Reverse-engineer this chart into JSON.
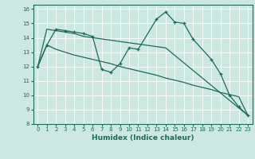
{
  "title": "",
  "xlabel": "Humidex (Indice chaleur)",
  "bg_color": "#cce8e0",
  "grid_color": "#ffffff",
  "line_color": "#1a6b5a",
  "xlim": [
    -0.5,
    23.5
  ],
  "ylim": [
    8,
    16.3
  ],
  "xticks": [
    0,
    1,
    2,
    3,
    4,
    5,
    6,
    7,
    8,
    9,
    10,
    11,
    12,
    13,
    14,
    15,
    16,
    17,
    18,
    19,
    20,
    21,
    22,
    23
  ],
  "yticks": [
    8,
    9,
    10,
    11,
    12,
    13,
    14,
    15,
    16
  ],
  "series1": {
    "x": [
      0,
      1,
      2,
      3,
      4,
      5,
      6,
      7,
      8,
      9,
      10,
      11,
      13,
      14,
      15,
      16,
      17,
      19,
      20,
      21,
      22,
      23
    ],
    "y": [
      12.0,
      13.5,
      14.6,
      14.5,
      14.4,
      14.3,
      14.1,
      11.8,
      11.6,
      12.2,
      13.3,
      13.2,
      15.3,
      15.8,
      15.1,
      15.0,
      13.9,
      12.5,
      11.5,
      10.0,
      9.2,
      8.6
    ]
  },
  "series2_x": [
    0,
    1,
    2,
    3,
    4,
    5,
    14,
    23
  ],
  "series2_y": [
    12.0,
    14.6,
    14.5,
    14.4,
    14.3,
    14.1,
    13.3,
    8.6
  ],
  "series3_x": [
    0,
    1,
    2,
    3,
    4,
    5,
    6,
    7,
    8,
    9,
    10,
    11,
    12,
    13,
    14,
    15,
    16,
    17,
    18,
    19,
    20,
    21,
    22,
    23
  ],
  "series3_y": [
    12.0,
    13.5,
    13.2,
    13.0,
    12.8,
    12.65,
    12.5,
    12.35,
    12.2,
    12.0,
    11.85,
    11.7,
    11.55,
    11.4,
    11.2,
    11.05,
    10.9,
    10.7,
    10.55,
    10.4,
    10.2,
    10.05,
    9.9,
    8.6
  ]
}
